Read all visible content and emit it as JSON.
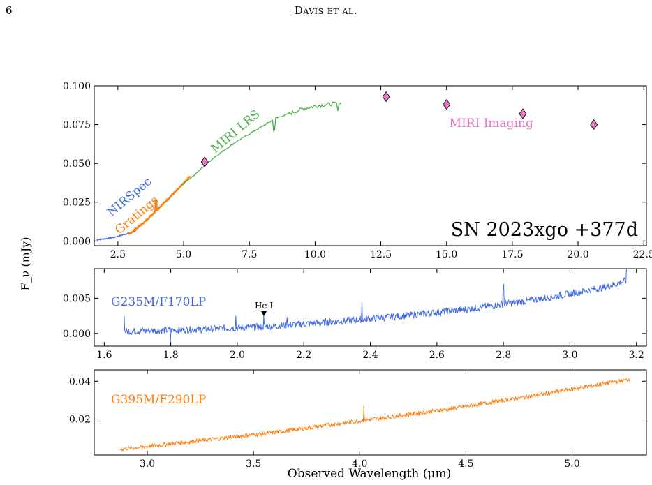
{
  "page": {
    "page_number": "6",
    "running_head": "Davis et al."
  },
  "colors": {
    "nirspec": "#4169e1",
    "gratings": "#ff7f0e",
    "miri_lrs": "#4daf4a",
    "miri_imaging": "#e377c2",
    "axes": "#000000"
  },
  "figure": {
    "ylabel": "F_ν (mJy)",
    "xlabel": "Observed Wavelength (μm)"
  },
  "chart_data": [
    {
      "type": "line",
      "annotation": "SN 2023xgo +377d",
      "xlim": [
        1.6,
        22.6
      ],
      "ylim": [
        -0.003,
        0.1
      ],
      "xticks": [
        "2.5",
        "5.0",
        "7.5",
        "10.0",
        "12.5",
        "15.0",
        "17.5",
        "20.0",
        "22.5"
      ],
      "yticks": [
        "0.000",
        "0.025",
        "0.050",
        "0.075",
        "0.100"
      ],
      "curve_labels": [
        "NIRSpec",
        "Gratings",
        "MIRI LRS"
      ],
      "series": [
        {
          "name": "NIRSpec",
          "color": "#4169e1",
          "x": [
            1.7,
            2.0,
            2.3,
            2.6,
            2.9,
            3.2
          ],
          "y": [
            0.0008,
            0.0015,
            0.0022,
            0.0035,
            0.005,
            0.0065
          ]
        },
        {
          "name": "Gratings",
          "color": "#ff7f0e",
          "x": [
            2.9,
            3.2,
            3.5,
            3.8,
            4.1,
            4.4,
            4.7,
            5.0,
            5.25
          ],
          "y": [
            0.004,
            0.008,
            0.012,
            0.017,
            0.022,
            0.027,
            0.032,
            0.037,
            0.042
          ]
        },
        {
          "name": "MIRI LRS",
          "color": "#4daf4a",
          "x": [
            4.9,
            5.3,
            5.7,
            6.1,
            6.5,
            7.0,
            7.5,
            8.0,
            8.5,
            9.0,
            9.5,
            10.0,
            10.5,
            11.0
          ],
          "y": [
            0.036,
            0.041,
            0.047,
            0.053,
            0.058,
            0.064,
            0.069,
            0.074,
            0.079,
            0.082,
            0.085,
            0.087,
            0.088,
            0.089
          ]
        }
      ],
      "points": {
        "name": "MIRI Imaging",
        "color": "#e377c2",
        "x": [
          5.8,
          12.7,
          15.0,
          17.9,
          20.6
        ],
        "y": [
          0.051,
          0.093,
          0.088,
          0.082,
          0.075
        ]
      }
    },
    {
      "type": "line",
      "label": "G235M/F170LP",
      "color": "#4169e1",
      "xlim": [
        1.57,
        3.23
      ],
      "ylim": [
        -0.0018,
        0.0092
      ],
      "xticks": [
        "1.6",
        "1.8",
        "2.0",
        "2.2",
        "2.4",
        "2.6",
        "2.8",
        "3.0",
        "3.2"
      ],
      "yticks": [
        "0.000",
        "0.005"
      ],
      "x_start": 1.66,
      "x_end": 3.17,
      "continuum_x": [
        1.66,
        1.9,
        2.1,
        2.3,
        2.5,
        2.7,
        2.9,
        3.1,
        3.17
      ],
      "continuum_y": [
        0.0003,
        0.0006,
        0.001,
        0.0017,
        0.0025,
        0.0035,
        0.0048,
        0.0065,
        0.0075
      ],
      "spikes_x": [
        1.66,
        1.8,
        1.995,
        2.08,
        2.15,
        2.375,
        2.8,
        3.17
      ],
      "spikes_y": [
        0.0025,
        -0.0012,
        0.0025,
        0.0025,
        0.0023,
        0.0045,
        0.007,
        0.0092
      ],
      "line_marker": {
        "label": "He I",
        "x": 2.08
      }
    },
    {
      "type": "line",
      "label": "G395M/F290LP",
      "color": "#ff7f0e",
      "xlim": [
        2.75,
        5.35
      ],
      "ylim": [
        0.001,
        0.046
      ],
      "xticks": [
        "3.0",
        "3.5",
        "4.0",
        "4.5",
        "5.0"
      ],
      "yticks": [
        "0.02",
        "0.04"
      ],
      "x_start": 2.87,
      "x_end": 5.27,
      "continuum_x": [
        2.87,
        3.2,
        3.6,
        4.0,
        4.4,
        4.8,
        5.27
      ],
      "continuum_y": [
        0.004,
        0.008,
        0.013,
        0.019,
        0.025,
        0.032,
        0.041
      ],
      "spikes_x": [
        4.02
      ],
      "spikes_y": [
        0.027
      ]
    }
  ]
}
